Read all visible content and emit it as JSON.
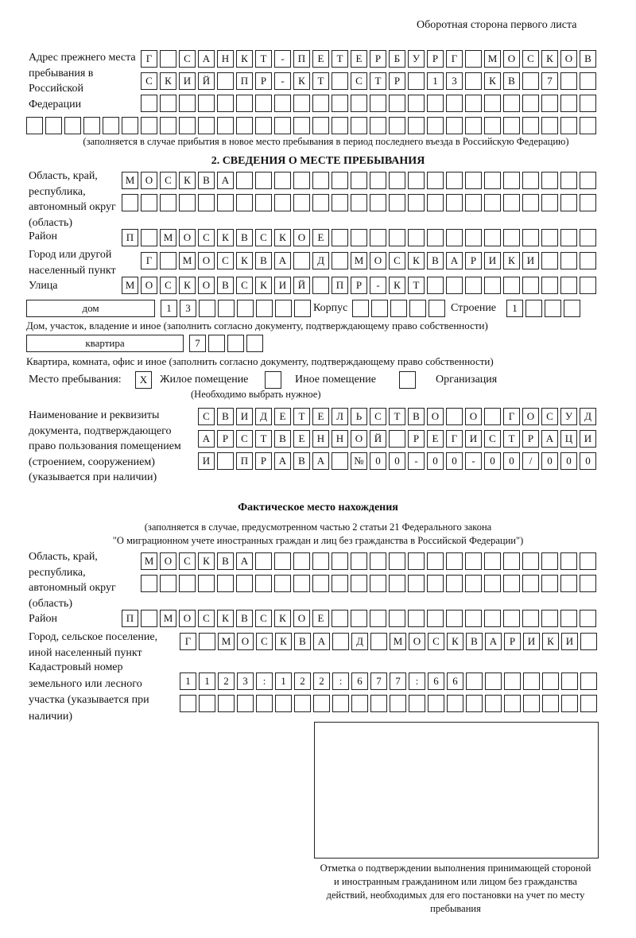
{
  "header": {
    "page_side": "Оборотная сторона первого листа"
  },
  "previous_address": {
    "label": "Адрес прежнего места пребывания в Российской Федерации",
    "rows": [
      [
        "Г",
        "",
        "С",
        "А",
        "Н",
        "К",
        "Т",
        "-",
        "П",
        "Е",
        "Т",
        "Е",
        "Р",
        "Б",
        "У",
        "Р",
        "Г",
        "",
        "М",
        "О",
        "С",
        "К",
        "О",
        "В"
      ],
      [
        "С",
        "К",
        "И",
        "Й",
        "",
        "П",
        "Р",
        "-",
        "К",
        "Т",
        "",
        "С",
        "Т",
        "Р",
        "",
        "1",
        "3",
        "",
        "К",
        "В",
        "",
        "7",
        "",
        ""
      ],
      [
        "",
        "",
        "",
        "",
        "",
        "",
        "",
        "",
        "",
        "",
        "",
        "",
        "",
        "",
        "",
        "",
        "",
        "",
        "",
        "",
        "",
        "",
        "",
        ""
      ],
      [
        "",
        "",
        "",
        "",
        "",
        "",
        "",
        "",
        "",
        "",
        "",
        "",
        "",
        "",
        "",
        "",
        "",
        "",
        "",
        "",
        "",
        "",
        "",
        "",
        "",
        "",
        "",
        "",
        "",
        ""
      ]
    ],
    "note": "(заполняется в случае прибытия в новое место пребывания в период последнего въезда в Российскую Федерацию)"
  },
  "section2": {
    "title": "2. СВЕДЕНИЯ О МЕСТЕ ПРЕБЫВАНИЯ",
    "region_label": "Область, край, республика, автономный округ (область)",
    "region_rows": [
      [
        "М",
        "О",
        "С",
        "К",
        "В",
        "А",
        "",
        "",
        "",
        "",
        "",
        "",
        "",
        "",
        "",
        "",
        "",
        "",
        "",
        "",
        "",
        "",
        "",
        "",
        ""
      ],
      [
        "",
        "",
        "",
        "",
        "",
        "",
        "",
        "",
        "",
        "",
        "",
        "",
        "",
        "",
        "",
        "",
        "",
        "",
        "",
        "",
        "",
        "",
        "",
        "",
        ""
      ]
    ],
    "district_label": "Район",
    "district_row": [
      "П",
      "",
      "М",
      "О",
      "С",
      "К",
      "В",
      "С",
      "К",
      "О",
      "Е",
      "",
      "",
      "",
      "",
      "",
      "",
      "",
      "",
      "",
      "",
      "",
      "",
      "",
      ""
    ],
    "city_label": "Город или другой населенный пункт",
    "city_row": [
      "Г",
      "",
      "М",
      "О",
      "С",
      "К",
      "В",
      "А",
      "",
      "Д",
      "",
      "М",
      "О",
      "С",
      "К",
      "В",
      "А",
      "Р",
      "И",
      "К",
      "И",
      "",
      "",
      ""
    ],
    "street_label": "Улица",
    "street_row": [
      "М",
      "О",
      "С",
      "К",
      "О",
      "В",
      "С",
      "К",
      "И",
      "Й",
      "",
      "П",
      "Р",
      "-",
      "К",
      "Т",
      "",
      "",
      "",
      "",
      "",
      "",
      "",
      "",
      ""
    ],
    "house_type": "дом",
    "house_cells": [
      "1",
      "3",
      "",
      "",
      "",
      "",
      "",
      ""
    ],
    "korpus_label": "Корпус",
    "korpus_cells": [
      "",
      "",
      "",
      "",
      ""
    ],
    "building_label": "Строение",
    "building_cells": [
      "1",
      "",
      "",
      ""
    ],
    "house_note": "Дом, участок, владение и иное (заполнить согласно документу, подтверждающему право собственности)",
    "apt_type": "квартира",
    "apt_cells": [
      "7",
      "",
      "",
      ""
    ],
    "apt_note": "Квартира, комната, офис и иное (заполнить согласно документу, подтверждающему право собственности)",
    "place_label": "Место пребывания:",
    "place_options": [
      {
        "label": "Жилое помещение",
        "mark": "X"
      },
      {
        "label": "Иное помещение",
        "mark": ""
      },
      {
        "label": "Организация",
        "mark": ""
      }
    ],
    "place_note": "(Необходимо выбрать нужное)",
    "doc_label": "Наименование и реквизиты документа, подтверждающего право пользования помещением (строением, сооружением) (указывается при наличии)",
    "doc_rows": [
      [
        "С",
        "В",
        "И",
        "Д",
        "Е",
        "Т",
        "Е",
        "Л",
        "Ь",
        "С",
        "Т",
        "В",
        "О",
        "",
        "О",
        "",
        "Г",
        "О",
        "С",
        "У",
        "Д"
      ],
      [
        "А",
        "Р",
        "С",
        "Т",
        "В",
        "Е",
        "Н",
        "Н",
        "О",
        "Й",
        "",
        "Р",
        "Е",
        "Г",
        "И",
        "С",
        "Т",
        "Р",
        "А",
        "Ц",
        "И"
      ],
      [
        "И",
        "",
        "П",
        "Р",
        "А",
        "В",
        "А",
        "",
        "№",
        "0",
        "0",
        "-",
        "0",
        "0",
        "-",
        "0",
        "0",
        "/",
        "0",
        "0",
        "0"
      ]
    ]
  },
  "actual": {
    "title": "Фактическое место нахождения",
    "note1": "(заполняется в случае, предусмотренном частью 2 статьи 21 Федерального закона",
    "note2": "\"О миграционном учете иностранных граждан и лиц без гражданства в Российской Федерации\")",
    "region_label": "Область, край, республика, автономный округ (область)",
    "region_rows": [
      [
        "М",
        "О",
        "С",
        "К",
        "В",
        "А",
        "",
        "",
        "",
        "",
        "",
        "",
        "",
        "",
        "",
        "",
        "",
        "",
        "",
        "",
        "",
        "",
        "",
        ""
      ],
      [
        "",
        "",
        "",
        "",
        "",
        "",
        "",
        "",
        "",
        "",
        "",
        "",
        "",
        "",
        "",
        "",
        "",
        "",
        "",
        "",
        "",
        "",
        "",
        ""
      ]
    ],
    "district_label": "Район",
    "district_row": [
      "П",
      "",
      "М",
      "О",
      "С",
      "К",
      "В",
      "С",
      "К",
      "О",
      "Е",
      "",
      "",
      "",
      "",
      "",
      "",
      "",
      "",
      "",
      "",
      "",
      "",
      "",
      ""
    ],
    "city_label": "Город, сельское поселение, иной населенный пункт",
    "city_row": [
      "Г",
      "",
      "М",
      "О",
      "С",
      "К",
      "В",
      "А",
      "",
      "Д",
      "",
      "М",
      "О",
      "С",
      "К",
      "В",
      "А",
      "Р",
      "И",
      "К",
      "И",
      ""
    ],
    "cadastral_label": "Кадастровый номер земельного или лесного участка (указывается при наличии)",
    "cadastral_rows": [
      [
        "1",
        "1",
        "2",
        "3",
        ":",
        "1",
        "2",
        "2",
        ":",
        "6",
        "7",
        "7",
        ":",
        "6",
        "6",
        "",
        "",
        "",
        "",
        "",
        "",
        ""
      ],
      [
        "",
        "",
        "",
        "",
        "",
        "",
        "",
        "",
        "",
        "",
        "",
        "",
        "",
        "",
        "",
        "",
        "",
        "",
        "",
        "",
        "",
        ""
      ]
    ],
    "stamp_caption": "Отметка о подтверждении выполнения принимающей стороной и иностранным гражданином или лицом без гражданства действий, необходимых для его постановки на учет по месту пребывания"
  }
}
